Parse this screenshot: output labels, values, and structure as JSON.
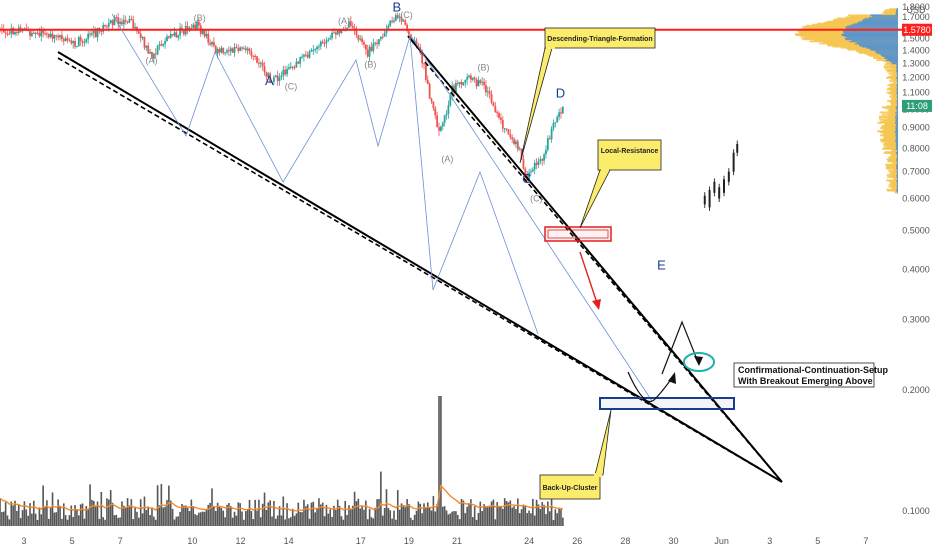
{
  "chart_data": {
    "type": "candlestick",
    "y_axis": {
      "unit": "USD",
      "scale": "log",
      "ylim": [
        0.094,
        1.85
      ],
      "tick_labels": [
        "1.8000",
        "1.7000",
        "1.6000",
        "1.5000",
        "1.4000",
        "1.3000",
        "1.2000",
        "1.1000",
        "1.0000",
        "0.9000",
        "0.8000",
        "0.7000",
        "0.6000",
        "0.5000",
        "0.4000",
        "0.3000",
        "0.2000",
        "0.1000"
      ],
      "tick_values": [
        1.8,
        1.7,
        1.6,
        1.5,
        1.4,
        1.3,
        1.2,
        1.1,
        1.0,
        0.9,
        0.8,
        0.7,
        0.6,
        0.5,
        0.4,
        0.3,
        0.2,
        0.1
      ],
      "price_tag": {
        "label": "1.5780",
        "value": 1.578,
        "color": "#ff1d1d"
      },
      "time_tag": {
        "label": "11:08",
        "value": 1.02,
        "color": "#2e9e78"
      }
    },
    "x_axis": {
      "tick_labels": [
        "3",
        "5",
        "7",
        "10",
        "12",
        "14",
        "17",
        "19",
        "21",
        "24",
        "26",
        "28",
        "30",
        "Jun",
        "3",
        "5",
        "7"
      ],
      "tick_days": [
        3,
        5,
        7,
        10,
        12,
        14,
        17,
        19,
        21,
        24,
        26,
        28,
        30,
        32,
        34,
        36,
        38
      ]
    },
    "horizontal_line": {
      "value": 1.578,
      "color": "#ff1d1d"
    },
    "elliott_points": [
      {
        "label": "A",
        "day": 13.2,
        "price": 1.15
      },
      {
        "label": "B",
        "day": 18.5,
        "price": 1.75
      },
      {
        "label": "C",
        "day": 23.9,
        "price": 0.655
      },
      {
        "label": "D",
        "day": 25.3,
        "price": 1.07
      },
      {
        "label": "E",
        "day": 29.5,
        "price": 0.4
      }
    ],
    "wave_labels": [
      {
        "label": "(B)",
        "day": 10.3,
        "price": 1.66
      },
      {
        "label": "(A)",
        "day": 8.3,
        "price": 1.3
      },
      {
        "label": "(C)",
        "day": 14.1,
        "price": 1.12
      },
      {
        "label": "(A)",
        "day": 16.3,
        "price": 1.63
      },
      {
        "label": "(B)",
        "day": 17.4,
        "price": 1.27
      },
      {
        "label": "(C)",
        "day": 18.9,
        "price": 1.69
      },
      {
        "label": "(B)",
        "day": 22.1,
        "price": 1.25
      },
      {
        "label": "(A)",
        "day": 20.6,
        "price": 0.74
      },
      {
        "label": "(C)",
        "day": 24.3,
        "price": 0.59
      }
    ],
    "annotations": [
      {
        "id": "triangle",
        "text": "Descending-Triangle-Formation"
      },
      {
        "id": "resistance",
        "text": "Local-Resistance"
      },
      {
        "id": "backup",
        "text": "Back-Up-Cluster"
      },
      {
        "id": "setup_line1",
        "text": "Confirmational-Continuation-Setup"
      },
      {
        "id": "setup_line2",
        "text": "With Breakout Emerging Above"
      }
    ],
    "colors": {
      "up": "#26a69a",
      "down": "#ef5350",
      "volume": "#555555",
      "volume_ma": "#f28b30",
      "profile_blue": "#4a90d9",
      "profile_yellow": "#f6c34a",
      "navy": "#1a3d8f"
    }
  }
}
